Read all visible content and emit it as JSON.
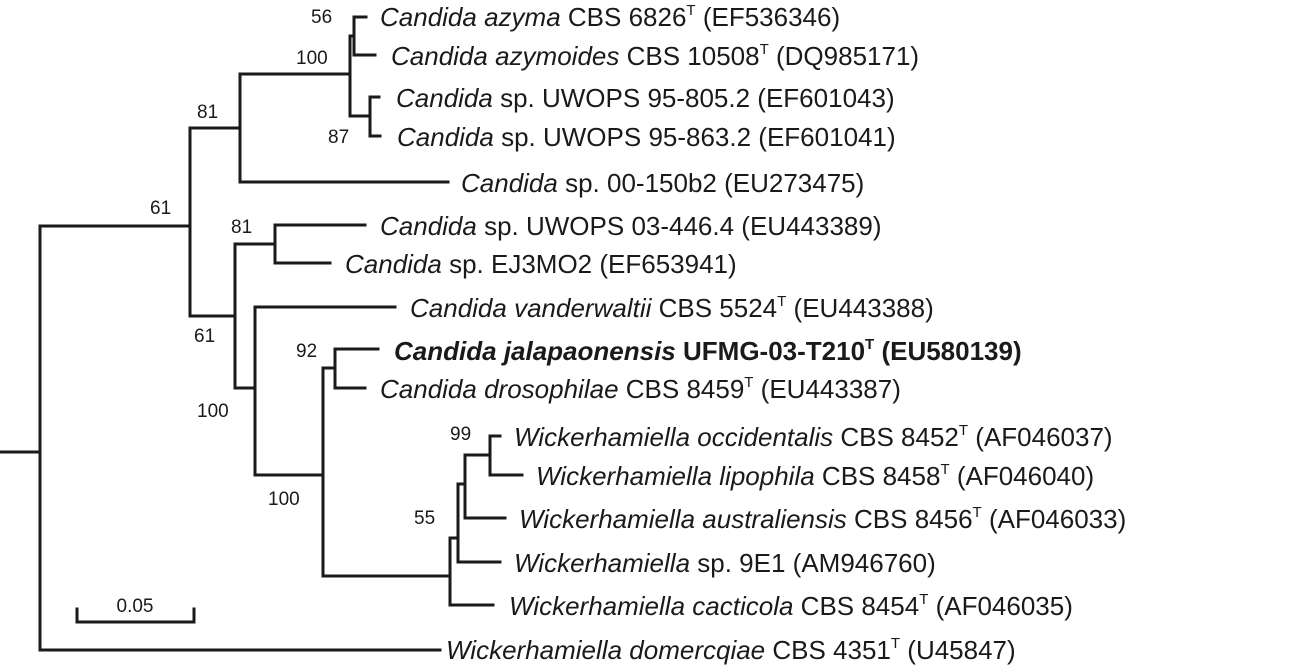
{
  "taxa": [
    {
      "genus": "Candida",
      "name": "azyma",
      "rest": " CBS 6826",
      "type_strain": true,
      "accession": " (EF536346)",
      "bold": false
    },
    {
      "genus": "Candida",
      "name": "azymoides",
      "rest": " CBS 10508",
      "type_strain": true,
      "accession": " (DQ985171)",
      "bold": false
    },
    {
      "genus": "Candida",
      "name": "",
      "rest": " sp. UWOPS 95-805.2 (EF601043)",
      "type_strain": false,
      "accession": "",
      "bold": false
    },
    {
      "genus": "Candida",
      "name": "",
      "rest": " sp. UWOPS 95-863.2 (EF601041)",
      "type_strain": false,
      "accession": "",
      "bold": false
    },
    {
      "genus": "Candida",
      "name": "",
      "rest": " sp. 00-150b2 (EU273475)",
      "type_strain": false,
      "accession": "",
      "bold": false
    },
    {
      "genus": "Candida",
      "name": "",
      "rest": " sp. UWOPS 03-446.4 (EU443389)",
      "type_strain": false,
      "accession": "",
      "bold": false
    },
    {
      "genus": "Candida",
      "name": "",
      "rest": " sp. EJ3MO2 (EF653941)",
      "type_strain": false,
      "accession": "",
      "bold": false
    },
    {
      "genus": "Candida",
      "name": "vanderwaltii",
      "rest": " CBS 5524",
      "type_strain": true,
      "accession": " (EU443388)",
      "bold": false
    },
    {
      "genus": "Candida",
      "name": "jalapaonensis",
      "rest": " UFMG-03-T210",
      "type_strain": true,
      "accession": " (EU580139)",
      "bold": true
    },
    {
      "genus": "Candida",
      "name": "drosophilae",
      "rest": " CBS 8459",
      "type_strain": true,
      "accession": " (EU443387)",
      "bold": false
    },
    {
      "genus": "Wickerhamiella",
      "name": "occidentalis",
      "rest": " CBS 8452",
      "type_strain": true,
      "accession": " (AF046037)",
      "bold": false
    },
    {
      "genus": "Wickerhamiella",
      "name": "lipophila",
      "rest": " CBS 8458",
      "type_strain": true,
      "accession": " (AF046040)",
      "bold": false
    },
    {
      "genus": "Wickerhamiella",
      "name": "australiensis",
      "rest": " CBS 8456",
      "type_strain": true,
      "accession": " (AF046033)",
      "bold": false
    },
    {
      "genus": "Wickerhamiella",
      "name": "",
      "rest": " sp. 9E1 (AM946760)",
      "type_strain": false,
      "accession": "",
      "bold": false
    },
    {
      "genus": "Wickerhamiella",
      "name": "cacticola",
      "rest": " CBS 8454",
      "type_strain": true,
      "accession": " (AF046035)",
      "bold": false
    },
    {
      "genus": "Wickerhamiella",
      "name": "domercqiae",
      "rest": " CBS 4351",
      "type_strain": true,
      "accession": " (U45847)",
      "bold": false
    }
  ],
  "type_mark": "T",
  "bootstrap": [
    "56",
    "100",
    "87",
    "81",
    "61",
    "81",
    "61",
    "100",
    "92",
    "99",
    "55",
    "100"
  ],
  "scale_bar_label": "0.05"
}
